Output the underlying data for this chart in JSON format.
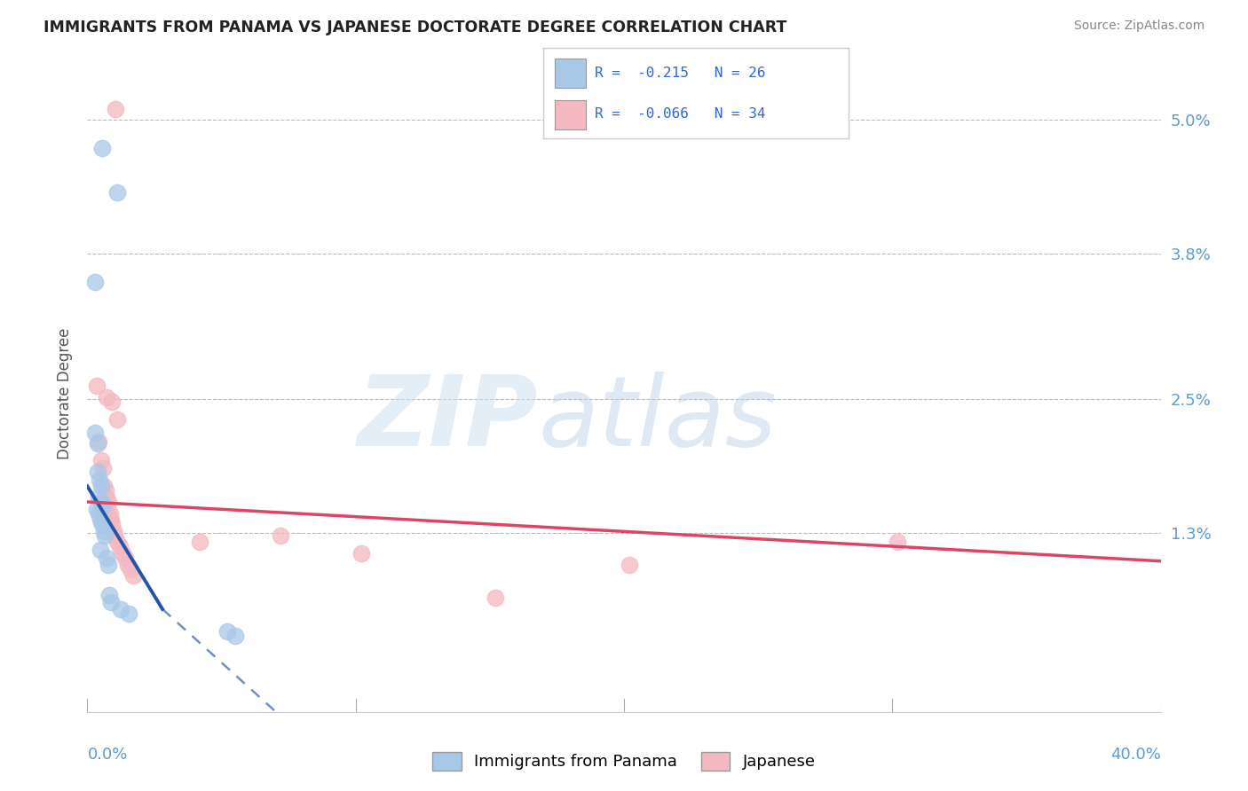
{
  "title": "IMMIGRANTS FROM PANAMA VS JAPANESE DOCTORATE DEGREE CORRELATION CHART",
  "source": "Source: ZipAtlas.com",
  "ylabel": "Doctorate Degree",
  "ytick_vals": [
    5.0,
    3.8,
    2.5,
    1.3
  ],
  "xlim": [
    0.0,
    40.0
  ],
  "ylim": [
    -0.3,
    5.4
  ],
  "legend_label1": "Immigrants from Panama",
  "legend_label2": "Japanese",
  "blue_color": "#a8c8e8",
  "pink_color": "#f4b8c0",
  "line_blue": "#2255aa",
  "line_pink": "#dd4466",
  "blue_points": [
    [
      0.55,
      4.75
    ],
    [
      1.1,
      4.35
    ],
    [
      0.28,
      3.55
    ],
    [
      0.28,
      2.2
    ],
    [
      0.38,
      2.1
    ],
    [
      0.38,
      1.85
    ],
    [
      0.45,
      1.78
    ],
    [
      0.52,
      1.72
    ],
    [
      0.42,
      1.62
    ],
    [
      0.52,
      1.58
    ],
    [
      0.58,
      1.55
    ],
    [
      0.35,
      1.52
    ],
    [
      0.42,
      1.48
    ],
    [
      0.48,
      1.42
    ],
    [
      0.55,
      1.38
    ],
    [
      0.62,
      1.32
    ],
    [
      0.65,
      1.28
    ],
    [
      0.72,
      1.08
    ],
    [
      0.78,
      1.02
    ],
    [
      0.82,
      0.75
    ],
    [
      0.88,
      0.68
    ],
    [
      1.25,
      0.62
    ],
    [
      1.55,
      0.58
    ],
    [
      5.2,
      0.42
    ],
    [
      5.5,
      0.38
    ],
    [
      0.48,
      1.15
    ]
  ],
  "pink_points": [
    [
      1.05,
      5.1
    ],
    [
      0.35,
      2.62
    ],
    [
      0.72,
      2.52
    ],
    [
      0.92,
      2.48
    ],
    [
      1.12,
      2.32
    ],
    [
      0.42,
      2.12
    ],
    [
      0.52,
      1.95
    ],
    [
      0.58,
      1.88
    ],
    [
      0.62,
      1.72
    ],
    [
      0.68,
      1.68
    ],
    [
      0.72,
      1.62
    ],
    [
      0.78,
      1.58
    ],
    [
      0.85,
      1.48
    ],
    [
      0.88,
      1.42
    ],
    [
      0.92,
      1.38
    ],
    [
      0.98,
      1.32
    ],
    [
      1.02,
      1.28
    ],
    [
      1.12,
      1.22
    ],
    [
      1.22,
      1.18
    ],
    [
      1.32,
      1.12
    ],
    [
      1.42,
      1.08
    ],
    [
      1.52,
      1.02
    ],
    [
      1.62,
      0.98
    ],
    [
      1.72,
      0.92
    ],
    [
      4.2,
      1.22
    ],
    [
      7.2,
      1.28
    ],
    [
      10.2,
      1.12
    ],
    [
      15.2,
      0.72
    ],
    [
      20.2,
      1.02
    ],
    [
      30.2,
      1.22
    ],
    [
      0.52,
      1.58
    ],
    [
      0.62,
      1.52
    ],
    [
      0.72,
      1.48
    ],
    [
      0.82,
      1.42
    ]
  ],
  "blue_line_solid": [
    [
      0.0,
      1.72
    ],
    [
      2.8,
      0.62
    ]
  ],
  "blue_line_dash": [
    [
      2.8,
      0.62
    ],
    [
      8.5,
      -0.62
    ]
  ],
  "pink_line": [
    [
      0.0,
      1.58
    ],
    [
      40.0,
      1.05
    ]
  ],
  "marker_size": 180
}
